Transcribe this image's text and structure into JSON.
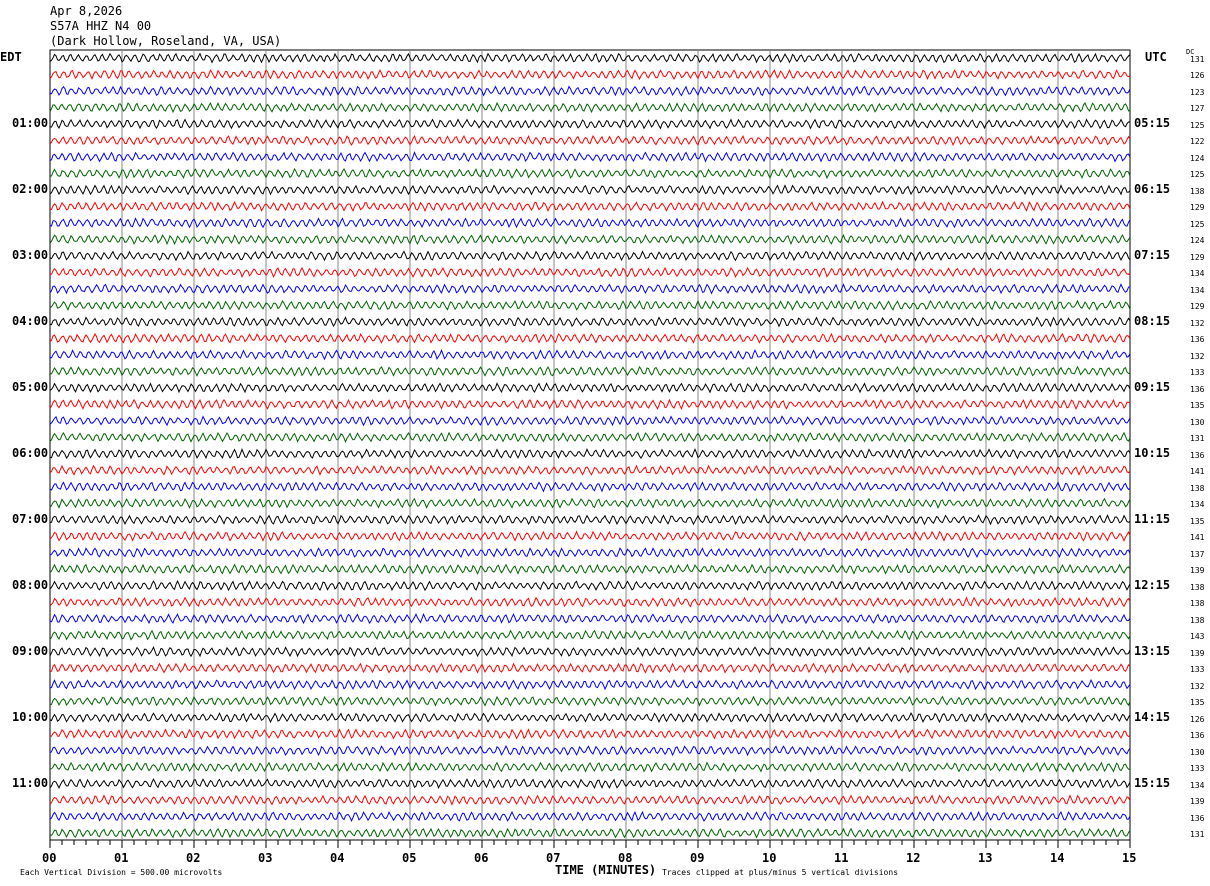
{
  "header": {
    "date": "Apr 8,2026",
    "station": "S57A HHZ N4 00",
    "location": "(Dark Hollow, Roseland, VA, USA)"
  },
  "left_tz": "EDT",
  "right_tz": "UTC",
  "dc_label": "DC",
  "footer": {
    "scale": "Each Vertical Division =  500.00 microvolts",
    "xlabel": "TIME (MINUTES)",
    "clip_note": "Traces clipped at plus/minus 5 vertical divisions"
  },
  "chart_data": {
    "type": "line",
    "xlabel": "TIME (MINUTES)",
    "xlim": [
      0,
      15
    ],
    "x_ticks": [
      "00",
      "01",
      "02",
      "03",
      "04",
      "05",
      "06",
      "07",
      "08",
      "09",
      "10",
      "11",
      "12",
      "13",
      "14",
      "15"
    ],
    "left_hour_labels": [
      "01:00",
      "02:00",
      "03:00",
      "04:00",
      "05:00",
      "06:00",
      "07:00",
      "08:00",
      "09:00",
      "10:00",
      "11:00"
    ],
    "right_hour_labels": [
      "05:15",
      "06:15",
      "07:15",
      "08:15",
      "09:15",
      "10:15",
      "11:15",
      "12:15",
      "13:15",
      "14:15",
      "15:15"
    ],
    "trace_colors": [
      "#000000",
      "#ff0000",
      "#0000ff",
      "#006400"
    ],
    "dc_offsets": [
      131,
      126,
      123,
      127,
      125,
      122,
      124,
      125,
      138,
      129,
      125,
      124,
      129,
      134,
      134,
      129,
      132,
      136,
      132,
      133,
      136,
      135,
      130,
      131,
      136,
      141,
      138,
      134,
      135,
      141,
      137,
      139,
      138,
      138,
      138,
      143,
      139,
      133,
      132,
      135,
      126,
      136,
      130,
      133,
      134,
      139,
      136,
      131
    ]
  }
}
